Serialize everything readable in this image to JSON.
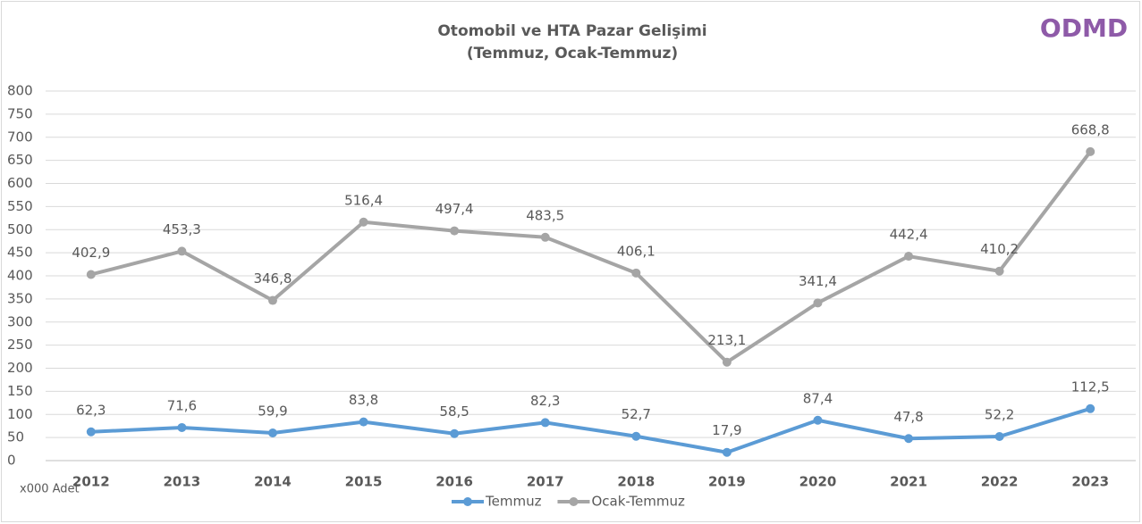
{
  "chart_data": {
    "type": "line",
    "title": "Otomobil ve HTA Pazar Gelişimi",
    "subtitle": "(Temmuz, Ocak-Temmuz)",
    "logo": "ODMD",
    "unit_label": "x000 Adet",
    "categories": [
      "2012",
      "2013",
      "2014",
      "2015",
      "2016",
      "2017",
      "2018",
      "2019",
      "2020",
      "2021",
      "2022",
      "2023"
    ],
    "series": [
      {
        "name": "Temmuz",
        "color": "#5b9bd5",
        "values": [
          62.3,
          71.6,
          59.9,
          83.8,
          58.5,
          82.3,
          52.7,
          17.9,
          87.4,
          47.8,
          52.2,
          112.5
        ],
        "value_labels": [
          "62,3",
          "71,6",
          "59,9",
          "83,8",
          "58,5",
          "82,3",
          "52,7",
          "17,9",
          "87,4",
          "47,8",
          "52,2",
          "112,5"
        ]
      },
      {
        "name": "Ocak-Temmuz",
        "color": "#a5a5a5",
        "values": [
          402.9,
          453.3,
          346.8,
          516.4,
          497.4,
          483.5,
          406.1,
          213.1,
          341.4,
          442.4,
          410.2,
          668.8
        ],
        "value_labels": [
          "402,9",
          "453,3",
          "346,8",
          "516,4",
          "497,4",
          "483,5",
          "406,1",
          "213,1",
          "341,4",
          "442,4",
          "410,2",
          "668,8"
        ]
      }
    ],
    "ylim": [
      0,
      800
    ],
    "yticks": [
      0,
      50,
      100,
      150,
      200,
      250,
      300,
      350,
      400,
      450,
      500,
      550,
      600,
      650,
      700,
      750,
      800
    ],
    "grid": true,
    "legend": "bottom"
  }
}
